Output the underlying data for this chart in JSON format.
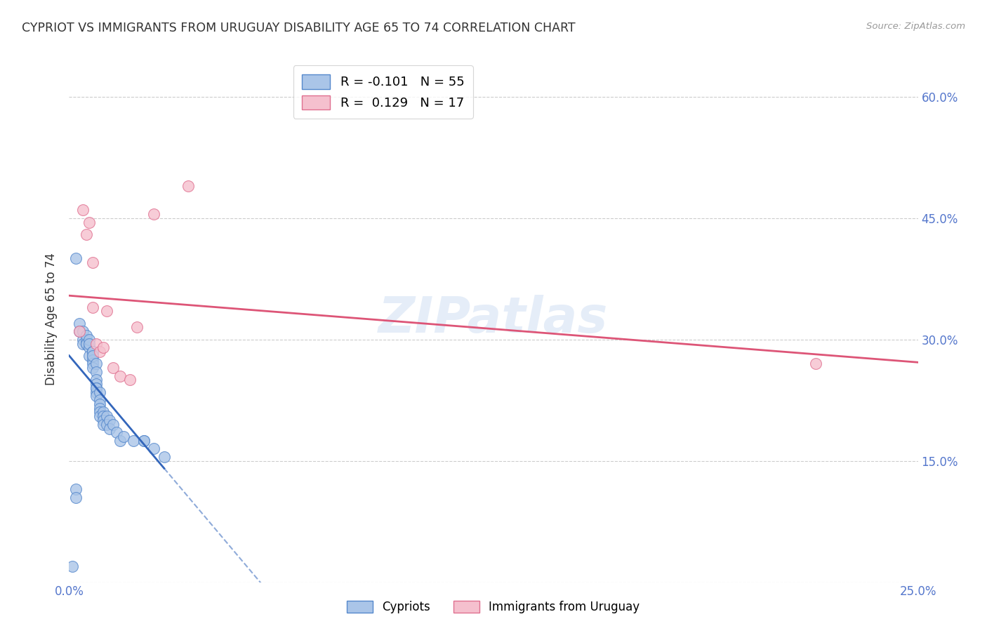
{
  "title": "CYPRIOT VS IMMIGRANTS FROM URUGUAY DISABILITY AGE 65 TO 74 CORRELATION CHART",
  "source": "Source: ZipAtlas.com",
  "ylabel": "Disability Age 65 to 74",
  "xlim": [
    0.0,
    0.25
  ],
  "ylim": [
    0.0,
    0.65
  ],
  "xticks": [
    0.0,
    0.05,
    0.1,
    0.15,
    0.2,
    0.25
  ],
  "yticks": [
    0.0,
    0.15,
    0.3,
    0.45,
    0.6
  ],
  "right_ytick_labels": [
    "",
    "15.0%",
    "30.0%",
    "45.0%",
    "60.0%"
  ],
  "left_ytick_labels": [
    "",
    "",
    "",
    "",
    ""
  ],
  "xtick_labels": [
    "0.0%",
    "",
    "",
    "",
    "",
    "25.0%"
  ],
  "cypriot_R": -0.101,
  "cypriot_N": 55,
  "uruguay_R": 0.129,
  "uruguay_N": 17,
  "cypriot_color": "#aac5e8",
  "cypriot_edge_color": "#5588cc",
  "cypriot_line_color": "#3366bb",
  "uruguay_color": "#f5c0ce",
  "uruguay_edge_color": "#e07090",
  "uruguay_line_color": "#dd5577",
  "watermark": "ZIPatlas",
  "cypriot_x": [
    0.001,
    0.002,
    0.002,
    0.003,
    0.003,
    0.004,
    0.004,
    0.004,
    0.005,
    0.005,
    0.005,
    0.005,
    0.006,
    0.006,
    0.006,
    0.006,
    0.007,
    0.007,
    0.007,
    0.007,
    0.007,
    0.007,
    0.007,
    0.008,
    0.008,
    0.008,
    0.008,
    0.008,
    0.008,
    0.008,
    0.008,
    0.009,
    0.009,
    0.009,
    0.009,
    0.009,
    0.009,
    0.01,
    0.01,
    0.01,
    0.01,
    0.011,
    0.011,
    0.012,
    0.012,
    0.013,
    0.014,
    0.015,
    0.016,
    0.019,
    0.022,
    0.022,
    0.025,
    0.028,
    0.002
  ],
  "cypriot_y": [
    0.02,
    0.115,
    0.105,
    0.32,
    0.31,
    0.3,
    0.31,
    0.295,
    0.3,
    0.295,
    0.305,
    0.295,
    0.29,
    0.3,
    0.295,
    0.28,
    0.285,
    0.28,
    0.285,
    0.275,
    0.27,
    0.28,
    0.265,
    0.27,
    0.26,
    0.25,
    0.245,
    0.24,
    0.235,
    0.24,
    0.23,
    0.235,
    0.225,
    0.22,
    0.215,
    0.21,
    0.205,
    0.21,
    0.205,
    0.2,
    0.195,
    0.205,
    0.195,
    0.2,
    0.19,
    0.195,
    0.185,
    0.175,
    0.18,
    0.175,
    0.175,
    0.175,
    0.165,
    0.155,
    0.4
  ],
  "uruguay_x": [
    0.003,
    0.004,
    0.005,
    0.006,
    0.007,
    0.007,
    0.008,
    0.009,
    0.01,
    0.011,
    0.013,
    0.015,
    0.018,
    0.02,
    0.025,
    0.035,
    0.22
  ],
  "uruguay_y": [
    0.31,
    0.46,
    0.43,
    0.445,
    0.395,
    0.34,
    0.295,
    0.285,
    0.29,
    0.335,
    0.265,
    0.255,
    0.25,
    0.315,
    0.455,
    0.49,
    0.27
  ],
  "grid_color": "#cccccc",
  "tick_label_color": "#5577cc",
  "title_color": "#333333",
  "source_color": "#999999"
}
